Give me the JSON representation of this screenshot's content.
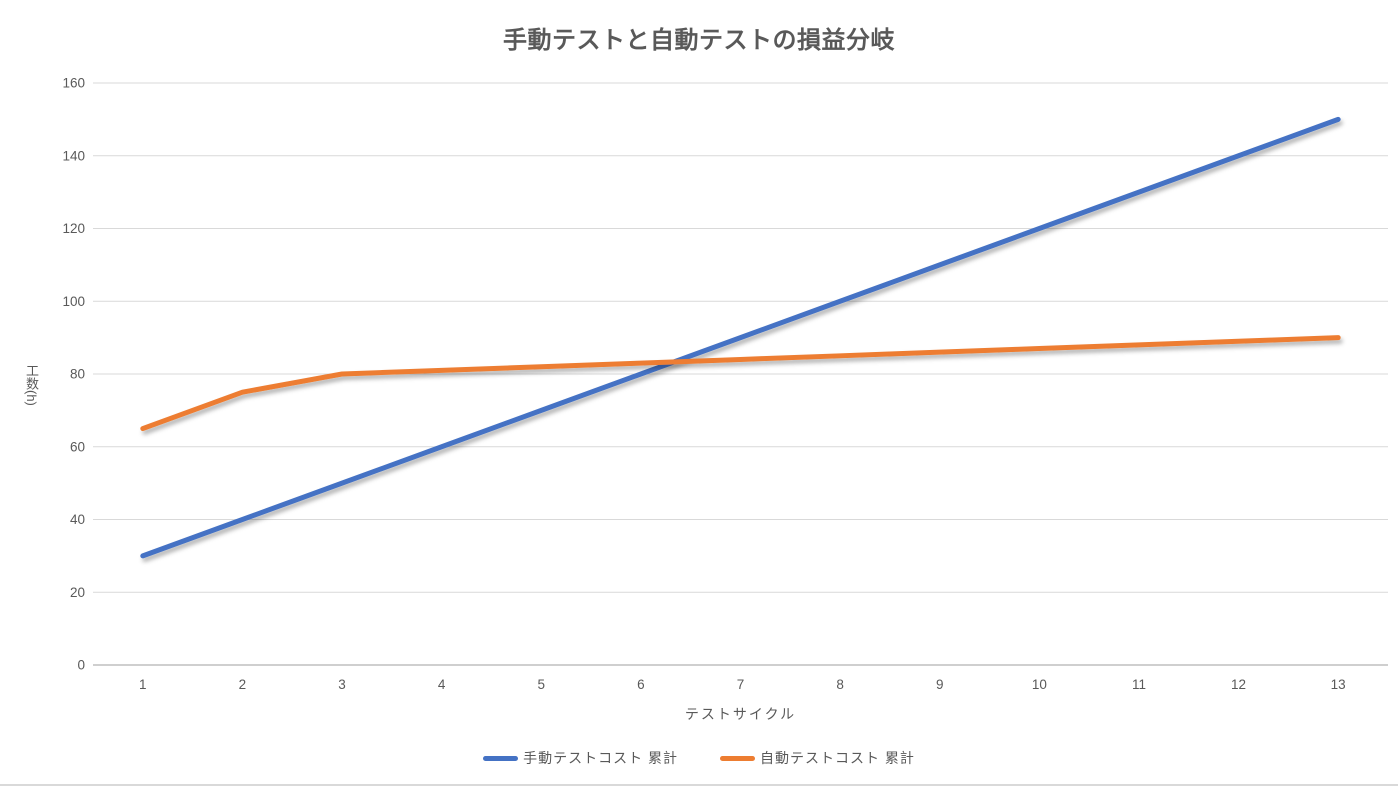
{
  "chart_data": {
    "type": "line",
    "title": "手動テストと自動テストの損益分岐",
    "xlabel": "テストサイクル",
    "ylabel": "工数(h)",
    "categories": [
      "1",
      "2",
      "3",
      "4",
      "5",
      "6",
      "7",
      "8",
      "9",
      "10",
      "11",
      "12",
      "13"
    ],
    "series": [
      {
        "name": "手動テストコスト 累計",
        "color": "#4472C4",
        "values": [
          30,
          40,
          50,
          60,
          70,
          80,
          90,
          100,
          110,
          120,
          130,
          140,
          150
        ]
      },
      {
        "name": "自動テストコスト 累計",
        "color": "#ED7D31",
        "values": [
          65,
          75,
          80,
          81,
          82,
          83,
          84,
          85,
          86,
          87,
          88,
          89,
          90
        ]
      }
    ],
    "ylim": [
      0,
      160
    ],
    "yticks": [
      0,
      20,
      40,
      60,
      80,
      100,
      120,
      140,
      160
    ],
    "grid": true,
    "legend_position": "bottom",
    "colors": {
      "text": "#595959",
      "gridline": "#D9D9D9",
      "axis_line": "#BFBFBF"
    }
  }
}
